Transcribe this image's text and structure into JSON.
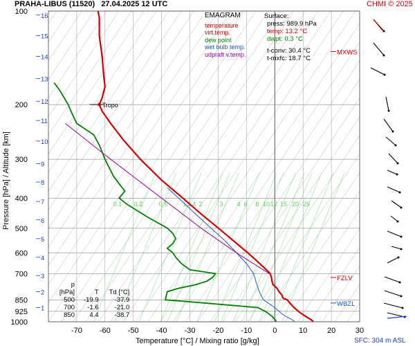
{
  "header": {
    "station": "PRAHA-LIBUS (11520)",
    "datetime": "27.04.2025 12 UTC",
    "credit": "CHMI © 2025",
    "sfc_label": "SFC: 304 m ASL"
  },
  "legend": {
    "title": "EMAGRAM",
    "items": [
      {
        "label": "temperature",
        "color": "#d00000"
      },
      {
        "label": "virt.temp.",
        "color": "#d00000"
      },
      {
        "label": "dew point",
        "color": "#008000"
      },
      {
        "label": "wet bulb temp.",
        "color": "#1a5ad0"
      },
      {
        "label": "udpraft v.temp.",
        "color": "#9c009c"
      }
    ]
  },
  "surface": {
    "title": "Surface:",
    "press": "press: 989.9 hPa",
    "temp": "temp: 13.2 °C",
    "dwpt": "dwpt: 0.3 °C",
    "tconv": "t-conv: 30.4 °C",
    "tmxfc": "t-mxfc: 18.7 °C",
    "colors": {
      "press": "#000000",
      "temp": "#d00000",
      "dwpt": "#008000"
    }
  },
  "table": {
    "header": [
      "p [hPa]",
      "T",
      "Td [°C]"
    ],
    "rows": [
      [
        "500",
        "-19.9",
        "-37.9"
      ],
      [
        "700",
        "-1.6",
        "-21.0"
      ],
      [
        "850",
        "4.4",
        "-38.7"
      ]
    ]
  },
  "chart_data": {
    "type": "line",
    "title": "PRAHA-LIBUS (11520) 27.04.2025 12 UTC",
    "xlabel": "Temperature [°C] / Mixing ratio [g/kg]",
    "ylabel": "Pressure [hPa] / Altitude [km]",
    "xlim": [
      -80,
      30
    ],
    "ylim": [
      1000,
      100
    ],
    "yscale": "log",
    "x_ticks": [
      -70,
      -60,
      -50,
      -40,
      -30,
      -20,
      -10,
      0,
      10,
      20,
      30
    ],
    "p_ticks": [
      100,
      200,
      300,
      400,
      500,
      600,
      700,
      850,
      925,
      1000
    ],
    "alt_labels": [
      {
        "km": "16",
        "p": 103
      },
      {
        "km": "15",
        "p": 120
      },
      {
        "km": "14",
        "p": 140
      },
      {
        "km": "13",
        "p": 165
      },
      {
        "km": "12",
        "p": 195
      },
      {
        "km": "11",
        "p": 225
      },
      {
        "km": "10",
        "p": 262
      },
      {
        "km": "9",
        "p": 310
      },
      {
        "km": "8",
        "p": 355
      },
      {
        "km": "7",
        "p": 410
      },
      {
        "km": "6",
        "p": 470
      },
      {
        "km": "5",
        "p": 540
      },
      {
        "km": "4",
        "p": 620
      },
      {
        "km": "3",
        "p": 710
      },
      {
        "km": "2",
        "p": 800
      },
      {
        "km": "1",
        "p": 900
      }
    ],
    "mixing_ratio_labels": [
      "0.1",
      "0.2",
      "0.5",
      "1",
      "1.4",
      "2",
      "3",
      "4",
      "6",
      "8",
      "10",
      "12",
      "15",
      "20",
      "25"
    ],
    "grid": true,
    "series": [
      {
        "name": "temperature",
        "color": "#d00000",
        "points": [
          [
            1000,
            13.5
          ],
          [
            990,
            13.2
          ],
          [
            960,
            10.8
          ],
          [
            930,
            8.6
          ],
          [
            900,
            6.8
          ],
          [
            870,
            5.3
          ],
          [
            850,
            4.4
          ],
          [
            840,
            3.0
          ],
          [
            820,
            2.5
          ],
          [
            800,
            1.5
          ],
          [
            780,
            0.8
          ],
          [
            760,
            -0.6
          ],
          [
            740,
            -1.0
          ],
          [
            720,
            -1.2
          ],
          [
            700,
            -1.6
          ],
          [
            680,
            -3.0
          ],
          [
            650,
            -5.3
          ],
          [
            600,
            -9.5
          ],
          [
            550,
            -14.5
          ],
          [
            500,
            -19.9
          ],
          [
            450,
            -26.0
          ],
          [
            400,
            -32.5
          ],
          [
            350,
            -40.0
          ],
          [
            300,
            -47.5
          ],
          [
            260,
            -53.5
          ],
          [
            230,
            -58.0
          ],
          [
            210,
            -61.0
          ],
          [
            200,
            -62.0
          ],
          [
            190,
            -61.0
          ],
          [
            175,
            -60.0
          ],
          [
            160,
            -60.5
          ],
          [
            140,
            -61.0
          ],
          [
            120,
            -62.0
          ],
          [
            105,
            -62.0
          ],
          [
            100,
            -62.5
          ]
        ]
      },
      {
        "name": "dew point",
        "color": "#008000",
        "points": [
          [
            1000,
            0.5
          ],
          [
            990,
            0.3
          ],
          [
            960,
            -1.0
          ],
          [
            930,
            -3.0
          ],
          [
            900,
            -6.0
          ],
          [
            870,
            -25.0
          ],
          [
            850,
            -38.7
          ],
          [
            800,
            -38.0
          ],
          [
            780,
            -34.0
          ],
          [
            760,
            -28.0
          ],
          [
            740,
            -24.0
          ],
          [
            720,
            -22.0
          ],
          [
            700,
            -21.0
          ],
          [
            680,
            -30.0
          ],
          [
            650,
            -33.0
          ],
          [
            620,
            -35.0
          ],
          [
            600,
            -36.0
          ],
          [
            580,
            -38.0
          ],
          [
            560,
            -36.0
          ],
          [
            540,
            -35.0
          ],
          [
            520,
            -36.0
          ],
          [
            500,
            -37.9
          ],
          [
            460,
            -45.0
          ],
          [
            420,
            -52.0
          ],
          [
            400,
            -55.0
          ],
          [
            380,
            -53.0
          ],
          [
            340,
            -57.0
          ],
          [
            300,
            -60.0
          ],
          [
            270,
            -62.0
          ],
          [
            250,
            -64.0
          ],
          [
            230,
            -70.0
          ],
          [
            220,
            -71.0
          ],
          [
            210,
            -72.0
          ],
          [
            200,
            -73.0
          ],
          [
            180,
            -76.0
          ],
          [
            170,
            -78.0
          ]
        ]
      },
      {
        "name": "wet bulb temp.",
        "color": "#1a5ad0",
        "points": [
          [
            1000,
            7.0
          ],
          [
            990,
            6.5
          ],
          [
            950,
            3.0
          ],
          [
            900,
            0.0
          ],
          [
            850,
            -4.0
          ],
          [
            800,
            -5.5
          ],
          [
            750,
            -6.5
          ],
          [
            700,
            -7.5
          ],
          [
            650,
            -10.0
          ],
          [
            600,
            -13.5
          ],
          [
            550,
            -17.5
          ],
          [
            500,
            -22.5
          ],
          [
            450,
            -28.0
          ],
          [
            400,
            -34.0
          ],
          [
            370,
            -38.0
          ]
        ]
      },
      {
        "name": "udpraft v.temp.",
        "color": "#9c009c",
        "points": [
          [
            700,
            -2.0
          ],
          [
            600,
            -13.5
          ],
          [
            500,
            -26.0
          ],
          [
            400,
            -40.0
          ],
          [
            300,
            -58.0
          ],
          [
            230,
            -74.0
          ]
        ]
      }
    ],
    "levels": [
      {
        "label": "MXWS",
        "p": 135,
        "color": "#d00000"
      },
      {
        "label": "FZLV",
        "p": 720,
        "color": "#d00000"
      },
      {
        "label": "WBZL",
        "p": 870,
        "color": "#1a5ad0"
      }
    ],
    "tropopause": {
      "label": "Tropo",
      "p": 200,
      "t": -62.0
    }
  }
}
